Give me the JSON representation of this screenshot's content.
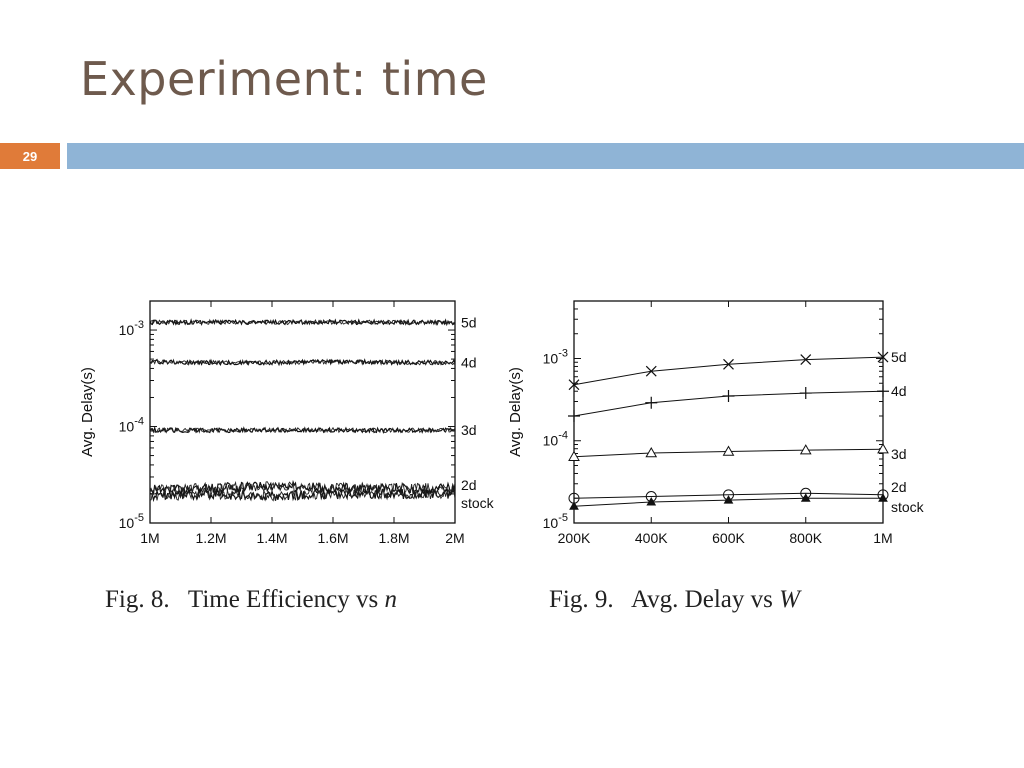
{
  "slide": {
    "title": "Experiment: time",
    "page_number": "29",
    "accent_color": "#e07b39",
    "bar_color": "#8fb4d6"
  },
  "chart_data": [
    {
      "type": "line",
      "ylabel": "Avg. Delay(s)",
      "xlabel": "",
      "y_scale": "log",
      "ylim": [
        1e-05,
        0.002
      ],
      "xlim": [
        1000000,
        2000000
      ],
      "x_ticks": [
        1000000,
        1200000,
        1400000,
        1600000,
        1800000,
        2000000
      ],
      "x_tick_labels": [
        "1M",
        "1.2M",
        "1.4M",
        "1.6M",
        "1.8M",
        "2M"
      ],
      "y_ticks": [
        1e-05,
        0.0001,
        0.001
      ],
      "y_tick_labels": [
        {
          "base": "10",
          "exp": "-5"
        },
        {
          "base": "10",
          "exp": "-4"
        },
        {
          "base": "10",
          "exp": "-3"
        }
      ],
      "x": [
        1000000,
        1200000,
        1400000,
        1600000,
        1800000,
        2000000
      ],
      "series": [
        {
          "name": "5d",
          "values": [
            0.0012,
            0.00121,
            0.0012,
            0.00121,
            0.0012,
            0.0012
          ]
        },
        {
          "name": "4d",
          "values": [
            0.00047,
            0.00046,
            0.00046,
            0.00047,
            0.00046,
            0.00046
          ]
        },
        {
          "name": "3d",
          "values": [
            9.2e-05,
            9.1e-05,
            9.2e-05,
            9.2e-05,
            9.1e-05,
            9.2e-05
          ]
        },
        {
          "name": "2d",
          "values": [
            2.2e-05,
            2.3e-05,
            2.4e-05,
            2.3e-05,
            2.3e-05,
            2.3e-05
          ]
        },
        {
          "name": "stock",
          "values": [
            1.9e-05,
            2e-05,
            1.9e-05,
            2e-05,
            2e-05,
            2e-05
          ]
        }
      ],
      "grid": false,
      "caption": {
        "prefix": "Fig. 8.",
        "text": "Time Efficiency vs",
        "var": "n"
      }
    },
    {
      "type": "line",
      "ylabel": "Avg. Delay(s)",
      "xlabel": "",
      "y_scale": "log",
      "ylim": [
        1e-05,
        0.005
      ],
      "xlim": [
        200000,
        1000000
      ],
      "x_ticks": [
        200000,
        400000,
        600000,
        800000,
        1000000
      ],
      "x_tick_labels": [
        "200K",
        "400K",
        "600K",
        "800K",
        "1M"
      ],
      "y_ticks": [
        1e-05,
        0.0001,
        0.001
      ],
      "y_tick_labels": [
        {
          "base": "10",
          "exp": "-5"
        },
        {
          "base": "10",
          "exp": "-4"
        },
        {
          "base": "10",
          "exp": "-3"
        }
      ],
      "x": [
        200000,
        400000,
        600000,
        800000,
        1000000
      ],
      "series": [
        {
          "name": "5d",
          "marker": "x",
          "values": [
            0.00048,
            0.0007,
            0.00085,
            0.00097,
            0.00104
          ]
        },
        {
          "name": "4d",
          "marker": "plus",
          "values": [
            0.0002,
            0.00029,
            0.00035,
            0.00038,
            0.0004
          ]
        },
        {
          "name": "3d",
          "marker": "triangle-open",
          "values": [
            6.4e-05,
            7.1e-05,
            7.4e-05,
            7.7e-05,
            7.9e-05
          ]
        },
        {
          "name": "2d",
          "marker": "circle-open",
          "values": [
            2e-05,
            2.1e-05,
            2.2e-05,
            2.3e-05,
            2.2e-05
          ]
        },
        {
          "name": "stock",
          "marker": "triangle-filled",
          "values": [
            1.6e-05,
            1.8e-05,
            1.9e-05,
            2e-05,
            2e-05
          ]
        }
      ],
      "grid": false,
      "caption": {
        "prefix": "Fig. 9.",
        "text": "Avg. Delay vs",
        "var": "W"
      }
    }
  ]
}
